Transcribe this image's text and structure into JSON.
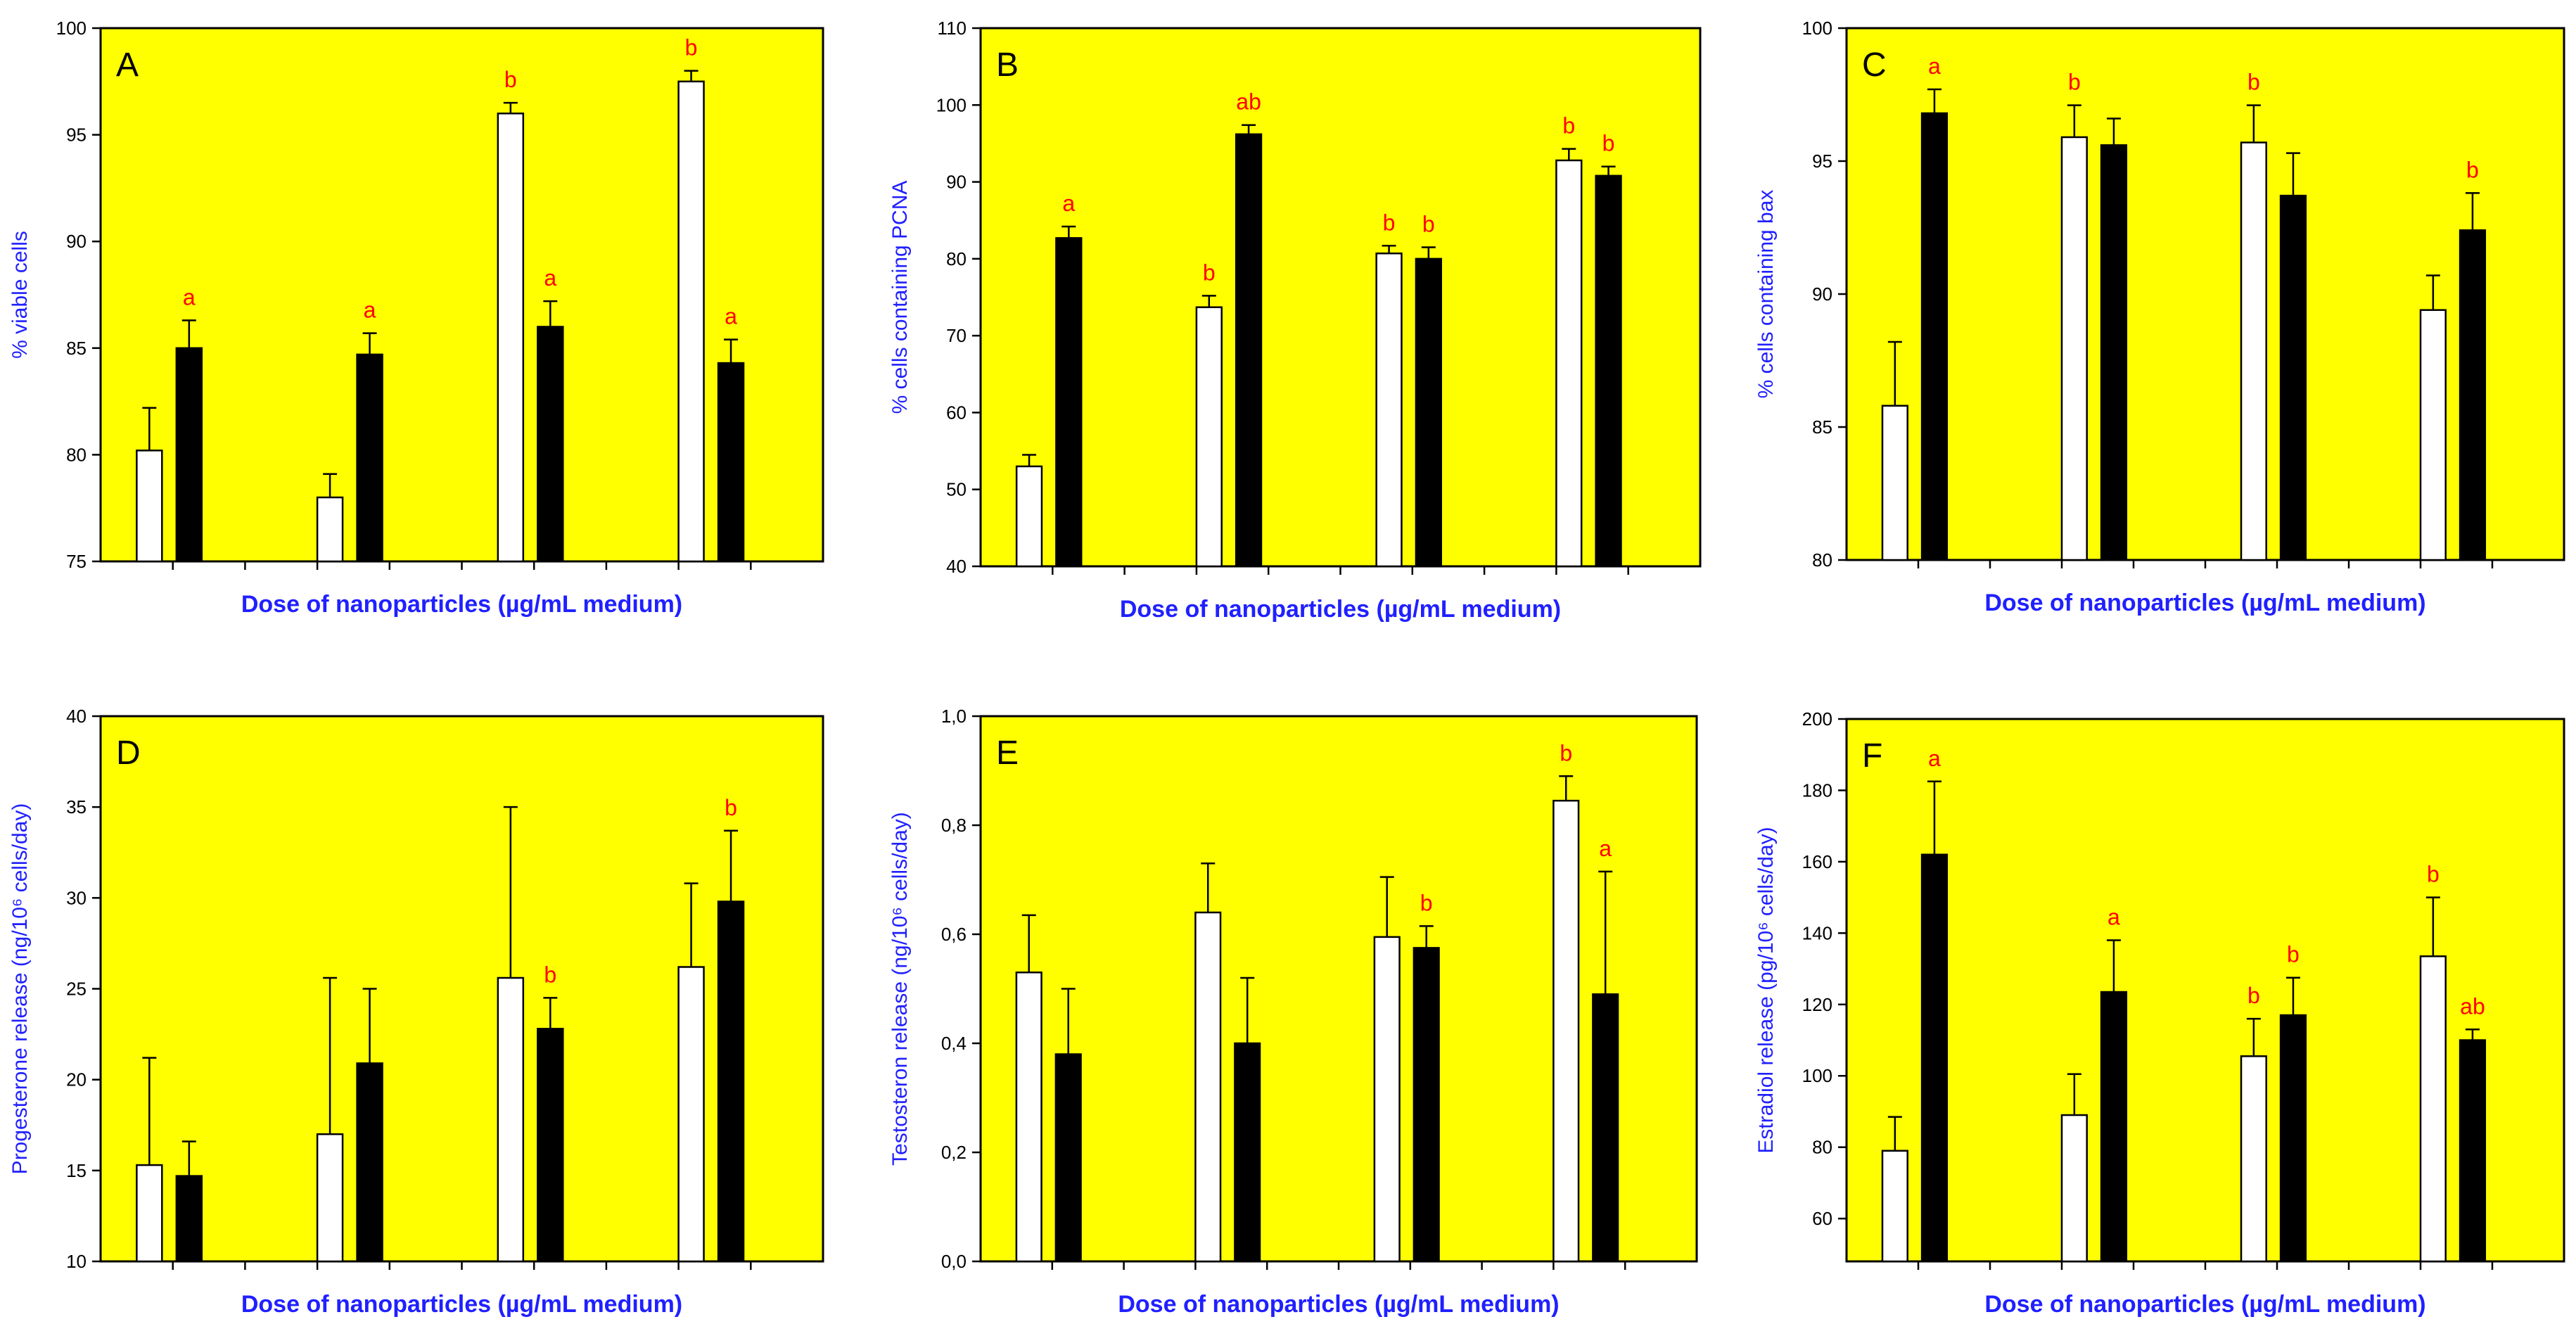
{
  "figure": {
    "colors": {
      "panel_bg": "#ffff00",
      "sig_label": "#ff0000",
      "axis_title": "#2020ff",
      "control_bar": "#ffffff",
      "treated_bar": "#000000",
      "axis": "#000000"
    }
  },
  "chart_data": [
    {
      "type": "bar",
      "panel_label": "A",
      "ylabel": "% viable cells",
      "xlabel": "Dose of nanoparticles (µg/mL medium)",
      "ylim": [
        75,
        100
      ],
      "yticks": [
        75,
        80,
        85,
        90,
        95,
        100
      ],
      "ytick_labels": [
        "75",
        "80",
        "85",
        "90",
        "95",
        "100"
      ],
      "series": [
        {
          "name": "white bars",
          "values": [
            80.2,
            78.0,
            96.0,
            97.5
          ],
          "errors": [
            2.0,
            1.1,
            0.5,
            0.5
          ],
          "sig": [
            "",
            "",
            "b",
            "b"
          ]
        },
        {
          "name": "black bars",
          "values": [
            85.0,
            84.7,
            86.0,
            84.3
          ],
          "errors": [
            1.3,
            1.0,
            1.2,
            1.1
          ],
          "sig": [
            "a",
            "a",
            "a",
            "a"
          ]
        }
      ]
    },
    {
      "type": "bar",
      "panel_label": "B",
      "ylabel": "% cells containing PCNA",
      "xlabel": "Dose of nanoparticles (µg/mL medium)",
      "ylim": [
        40,
        110
      ],
      "yticks": [
        40,
        50,
        60,
        70,
        80,
        90,
        100,
        110
      ],
      "ytick_labels": [
        "40",
        "50",
        "60",
        "70",
        "80",
        "90",
        "100",
        "110"
      ],
      "series": [
        {
          "name": "white bars",
          "values": [
            53.0,
            73.7,
            80.7,
            92.8
          ],
          "errors": [
            1.5,
            1.5,
            1.0,
            1.5
          ],
          "sig": [
            "",
            "b",
            "b",
            "b"
          ]
        },
        {
          "name": "black bars",
          "values": [
            82.7,
            96.2,
            80.0,
            90.8
          ],
          "errors": [
            1.5,
            1.2,
            1.5,
            1.2
          ],
          "sig": [
            "a",
            "ab",
            "b",
            "b"
          ]
        }
      ]
    },
    {
      "type": "bar",
      "panel_label": "C",
      "ylabel": "% cells containing bax",
      "xlabel": "Dose of nanoparticles (µg/mL medium)",
      "ylim": [
        80,
        100
      ],
      "yticks": [
        80,
        85,
        90,
        95,
        100
      ],
      "ytick_labels": [
        "80",
        "85",
        "90",
        "95",
        "100"
      ],
      "series": [
        {
          "name": "white bars",
          "values": [
            85.8,
            95.9,
            95.7,
            89.4
          ],
          "errors": [
            2.4,
            1.2,
            1.4,
            1.3
          ],
          "sig": [
            "",
            "b",
            "b",
            ""
          ]
        },
        {
          "name": "black bars",
          "values": [
            96.8,
            95.6,
            93.7,
            92.4
          ],
          "errors": [
            0.9,
            1.0,
            1.6,
            1.4
          ],
          "sig": [
            "a",
            "",
            "",
            "b"
          ]
        }
      ]
    },
    {
      "type": "bar",
      "panel_label": "D",
      "ylabel": "Progesterone release (ng/10⁶ cells/day)",
      "xlabel": "Dose of nanoparticles (µg/mL medium)",
      "ylim": [
        10,
        40
      ],
      "yticks": [
        10,
        15,
        20,
        25,
        30,
        35,
        40
      ],
      "ytick_labels": [
        "10",
        "15",
        "20",
        "25",
        "30",
        "35",
        "40"
      ],
      "series": [
        {
          "name": "white bars",
          "values": [
            15.3,
            17.0,
            25.6,
            26.2
          ],
          "errors": [
            5.9,
            8.6,
            9.4,
            4.6
          ],
          "sig": [
            "",
            "",
            "",
            ""
          ]
        },
        {
          "name": "black bars",
          "values": [
            14.7,
            20.9,
            22.8,
            29.8
          ],
          "errors": [
            1.9,
            4.1,
            1.7,
            3.9
          ],
          "sig": [
            "",
            "",
            "b",
            "b"
          ]
        }
      ]
    },
    {
      "type": "bar",
      "panel_label": "E",
      "ylabel": "Testosteron release (ng/10⁶ cells/day)",
      "xlabel": "Dose of nanoparticles (µg/mL medium)",
      "ylim": [
        0,
        1.0
      ],
      "yticks": [
        0,
        0.2,
        0.4,
        0.6,
        0.8,
        1.0
      ],
      "ytick_labels": [
        "0,0",
        "0,2",
        "0,4",
        "0,6",
        "0,8",
        "1,0"
      ],
      "series": [
        {
          "name": "white bars",
          "values": [
            0.53,
            0.64,
            0.595,
            0.845
          ],
          "errors": [
            0.105,
            0.09,
            0.11,
            0.045
          ],
          "sig": [
            "",
            "",
            "",
            "b"
          ]
        },
        {
          "name": "black bars",
          "values": [
            0.38,
            0.4,
            0.575,
            0.49
          ],
          "errors": [
            0.12,
            0.12,
            0.04,
            0.225
          ],
          "sig": [
            "",
            "",
            "b",
            "a"
          ]
        }
      ]
    },
    {
      "type": "bar",
      "panel_label": "F",
      "ylabel": "Estradiol release (pg/10⁶ cells/day)",
      "xlabel": "Dose of nanoparticles (µg/mL medium)",
      "ylim": [
        48,
        200
      ],
      "yticks": [
        60,
        80,
        100,
        120,
        140,
        160,
        180,
        200
      ],
      "ytick_labels": [
        "60",
        "80",
        "100",
        "120",
        "140",
        "160",
        "180",
        "200"
      ],
      "series": [
        {
          "name": "white bars",
          "values": [
            79,
            89,
            105.5,
            133.5
          ],
          "errors": [
            9.5,
            11.5,
            10.5,
            16.5
          ],
          "sig": [
            "",
            "",
            "b",
            "b"
          ]
        },
        {
          "name": "black bars",
          "values": [
            162,
            123.5,
            117,
            110
          ],
          "errors": [
            20.5,
            14.5,
            10.5,
            3
          ],
          "sig": [
            "a",
            "a",
            "b",
            "ab"
          ]
        }
      ]
    }
  ]
}
